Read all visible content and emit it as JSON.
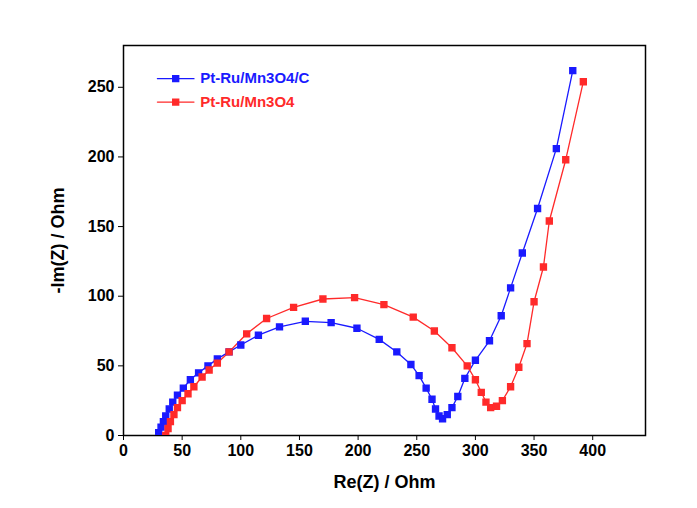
{
  "chart_data": {
    "type": "line",
    "x_label": "Re(Z) / Ohm",
    "y_label": "-Im(Z) / Ohm",
    "xlim": [
      0,
      445
    ],
    "ylim": [
      0,
      280
    ],
    "xticks": [
      0,
      50,
      100,
      150,
      200,
      250,
      300,
      350,
      400
    ],
    "yticks": [
      0,
      50,
      100,
      150,
      200,
      250
    ],
    "grid": false,
    "legend": "top-left",
    "marker": "square",
    "line_style": "solid",
    "series": [
      {
        "name": "Pt-Ru/Mn3O4/C",
        "color": "#1a1aff",
        "x": [
          30,
          32,
          34,
          36,
          39,
          42,
          46,
          51,
          57,
          64,
          72,
          80,
          90,
          100,
          115,
          133,
          155,
          177,
          199,
          218,
          233,
          245,
          252,
          258,
          263,
          266,
          269,
          272,
          276,
          280,
          285,
          291,
          300,
          312,
          322,
          330,
          340,
          353,
          369,
          383
        ],
        "values": [
          2,
          6,
          10,
          14,
          19,
          24,
          29,
          34,
          40,
          45,
          50,
          55,
          60,
          65,
          72,
          78,
          82,
          81,
          77,
          69,
          60,
          51,
          43,
          34,
          26,
          19,
          14,
          12,
          15,
          20,
          28,
          41,
          54,
          68,
          86,
          106,
          131,
          163,
          206,
          262
        ]
      },
      {
        "name": "Pt-Ru/Mn3O4",
        "color": "#ff2a2a",
        "x": [
          36,
          38,
          40,
          43,
          46,
          50,
          55,
          60,
          67,
          73,
          80,
          90,
          105,
          122,
          145,
          170,
          197,
          222,
          247,
          265,
          280,
          293,
          300,
          305,
          309,
          313,
          318,
          323,
          330,
          337,
          344,
          350,
          358,
          363,
          377,
          392
        ],
        "values": [
          0,
          5,
          10,
          15,
          20,
          25,
          30,
          35,
          42,
          47,
          52,
          60,
          73,
          84,
          92,
          98,
          99,
          94,
          85,
          75,
          63,
          50,
          40,
          31,
          24,
          20,
          21,
          25,
          35,
          49,
          66,
          96,
          121,
          154,
          198,
          254
        ]
      }
    ]
  }
}
